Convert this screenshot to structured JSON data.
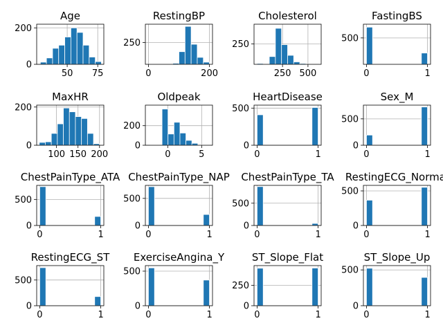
{
  "figure": {
    "background": "#ffffff",
    "bar_color": "#1f77b4",
    "grid_color": "#b0b0b0"
  },
  "chart_data": [
    {
      "type": "bar",
      "title": "Age",
      "xlim": [
        25,
        80
      ],
      "ylim": [
        0,
        220
      ],
      "xticks": [
        50,
        75
      ],
      "yticks": [
        0,
        200
      ],
      "grid": true,
      "bins": [
        [
          28,
          33,
          12
        ],
        [
          33,
          38,
          35
        ],
        [
          38,
          43,
          88
        ],
        [
          43,
          48,
          105
        ],
        [
          48,
          53,
          150
        ],
        [
          53,
          58,
          200
        ],
        [
          58,
          63,
          175
        ],
        [
          63,
          68,
          105
        ],
        [
          68,
          73,
          40
        ],
        [
          73,
          78,
          15
        ]
      ]
    },
    {
      "type": "bar",
      "title": "RestingBP",
      "xlim": [
        -10,
        210
      ],
      "ylim": [
        0,
        460
      ],
      "xticks": [
        0,
        200
      ],
      "yticks": [
        250
      ],
      "grid": true,
      "bins": [
        [
          0,
          20,
          1
        ],
        [
          20,
          40,
          0
        ],
        [
          40,
          60,
          0
        ],
        [
          60,
          80,
          0
        ],
        [
          80,
          100,
          12
        ],
        [
          100,
          120,
          145
        ],
        [
          120,
          140,
          435
        ],
        [
          140,
          160,
          230
        ],
        [
          160,
          180,
          80
        ],
        [
          180,
          200,
          25
        ]
      ]
    },
    {
      "type": "bar",
      "title": "Cholesterol",
      "xlim": [
        -30,
        630
      ],
      "ylim": [
        0,
        490
      ],
      "xticks": [
        250,
        500
      ],
      "yticks": [
        250
      ],
      "grid": true,
      "bins": [
        [
          0,
          60,
          10
        ],
        [
          60,
          120,
          0
        ],
        [
          120,
          180,
          95
        ],
        [
          180,
          240,
          440
        ],
        [
          240,
          300,
          240
        ],
        [
          300,
          360,
          110
        ],
        [
          360,
          420,
          30
        ],
        [
          420,
          480,
          10
        ],
        [
          480,
          540,
          5
        ],
        [
          540,
          600,
          5
        ]
      ]
    },
    {
      "type": "bar",
      "title": "FastingBS",
      "xlim": [
        -0.05,
        1.05
      ],
      "ylim": [
        0,
        760
      ],
      "xticks": [
        0,
        1
      ],
      "yticks": [
        500
      ],
      "grid": true,
      "bins": [
        [
          0,
          0.1,
          704
        ],
        [
          0.9,
          1,
          214
        ]
      ]
    },
    {
      "type": "bar",
      "title": "MaxHR",
      "xlim": [
        54,
        210
      ],
      "ylim": [
        0,
        210
      ],
      "xticks": [
        100,
        150,
        200
      ],
      "yticks": [
        0,
        200
      ],
      "grid": true,
      "bins": [
        [
          60,
          74,
          15
        ],
        [
          74,
          88,
          18
        ],
        [
          88,
          102,
          62
        ],
        [
          102,
          116,
          112
        ],
        [
          116,
          130,
          195
        ],
        [
          130,
          144,
          175
        ],
        [
          144,
          158,
          150
        ],
        [
          158,
          172,
          140
        ],
        [
          172,
          186,
          62
        ],
        [
          186,
          200,
          8
        ]
      ]
    },
    {
      "type": "bar",
      "title": "Oldpeak",
      "xlim": [
        -3.3,
        6.6
      ],
      "ylim": [
        0,
        410
      ],
      "xticks": [
        0,
        5
      ],
      "yticks": [
        0,
        200
      ],
      "grid": true,
      "bins": [
        [
          -2.6,
          -1.72,
          2
        ],
        [
          -1.72,
          -0.84,
          5
        ],
        [
          -0.84,
          0.04,
          370
        ],
        [
          0.04,
          0.92,
          115
        ],
        [
          0.92,
          1.8,
          235
        ],
        [
          1.8,
          2.68,
          125
        ],
        [
          2.68,
          3.56,
          50
        ],
        [
          3.56,
          4.44,
          20
        ],
        [
          4.44,
          5.32,
          3
        ],
        [
          5.32,
          6.2,
          2
        ]
      ]
    },
    {
      "type": "bar",
      "title": "HeartDisease",
      "xlim": [
        -0.05,
        1.05
      ],
      "ylim": [
        0,
        540
      ],
      "xticks": [
        0,
        1
      ],
      "yticks": [
        0,
        500
      ],
      "grid": true,
      "bins": [
        [
          0,
          0.1,
          410
        ],
        [
          0.9,
          1,
          508
        ]
      ]
    },
    {
      "type": "bar",
      "title": "Sex_M",
      "xlim": [
        -0.05,
        1.05
      ],
      "ylim": [
        0,
        760
      ],
      "xticks": [
        0,
        1
      ],
      "yticks": [
        0,
        500
      ],
      "grid": true,
      "bins": [
        [
          0,
          0.1,
          193
        ],
        [
          0.9,
          1,
          725
        ]
      ]
    },
    {
      "type": "bar",
      "title": "ChestPainType_ATA",
      "xlim": [
        -0.05,
        1.05
      ],
      "ylim": [
        0,
        770
      ],
      "xticks": [
        0,
        1
      ],
      "yticks": [
        0,
        500
      ],
      "grid": true,
      "bins": [
        [
          0,
          0.1,
          745
        ],
        [
          0.9,
          1,
          173
        ]
      ]
    },
    {
      "type": "bar",
      "title": "ChestPainType_NAP",
      "xlim": [
        -0.05,
        1.05
      ],
      "ylim": [
        0,
        740
      ],
      "xticks": [
        0,
        1
      ],
      "yticks": [
        0,
        500
      ],
      "grid": true,
      "bins": [
        [
          0,
          0.1,
          715
        ],
        [
          0.9,
          1,
          203
        ]
      ]
    },
    {
      "type": "bar",
      "title": "ChestPainType_TA",
      "xlim": [
        -0.05,
        1.05
      ],
      "ylim": [
        0,
        900
      ],
      "xticks": [
        0,
        1
      ],
      "yticks": [
        0,
        500
      ],
      "grid": true,
      "bins": [
        [
          0,
          0.1,
          872
        ],
        [
          0.9,
          1,
          46
        ]
      ]
    },
    {
      "type": "bar",
      "title": "RestingECG_Normal",
      "xlim": [
        -0.05,
        1.05
      ],
      "ylim": [
        0,
        580
      ],
      "xticks": [
        0,
        1
      ],
      "yticks": [
        0,
        500
      ],
      "grid": true,
      "bins": [
        [
          0,
          0.1,
          366
        ],
        [
          0.9,
          1,
          552
        ]
      ]
    },
    {
      "type": "bar",
      "title": "RestingECG_ST",
      "xlim": [
        -0.05,
        1.05
      ],
      "ylim": [
        0,
        780
      ],
      "xticks": [
        0,
        1
      ],
      "yticks": [
        0,
        500
      ],
      "grid": true,
      "bins": [
        [
          0,
          0.1,
          740
        ],
        [
          0.9,
          1,
          178
        ]
      ]
    },
    {
      "type": "bar",
      "title": "ExerciseAngina_Y",
      "xlim": [
        -0.05,
        1.05
      ],
      "ylim": [
        0,
        580
      ],
      "xticks": [
        0,
        1
      ],
      "yticks": [
        0,
        500
      ],
      "grid": true,
      "bins": [
        [
          0,
          0.1,
          547
        ],
        [
          0.9,
          1,
          371
        ]
      ]
    },
    {
      "type": "bar",
      "title": "ST_Slope_Flat",
      "xlim": [
        -0.05,
        1.05
      ],
      "ylim": [
        0,
        490
      ],
      "xticks": [
        0,
        1
      ],
      "yticks": [
        0,
        250
      ],
      "grid": true,
      "bins": [
        [
          0,
          0.1,
          458
        ],
        [
          0.9,
          1,
          460
        ]
      ]
    },
    {
      "type": "bar",
      "title": "ST_Slope_Up",
      "xlim": [
        -0.05,
        1.05
      ],
      "ylim": [
        0,
        560
      ],
      "xticks": [
        0,
        1
      ],
      "yticks": [
        0,
        500
      ],
      "grid": true,
      "bins": [
        [
          0,
          0.1,
          523
        ],
        [
          0.9,
          1,
          395
        ]
      ]
    }
  ]
}
